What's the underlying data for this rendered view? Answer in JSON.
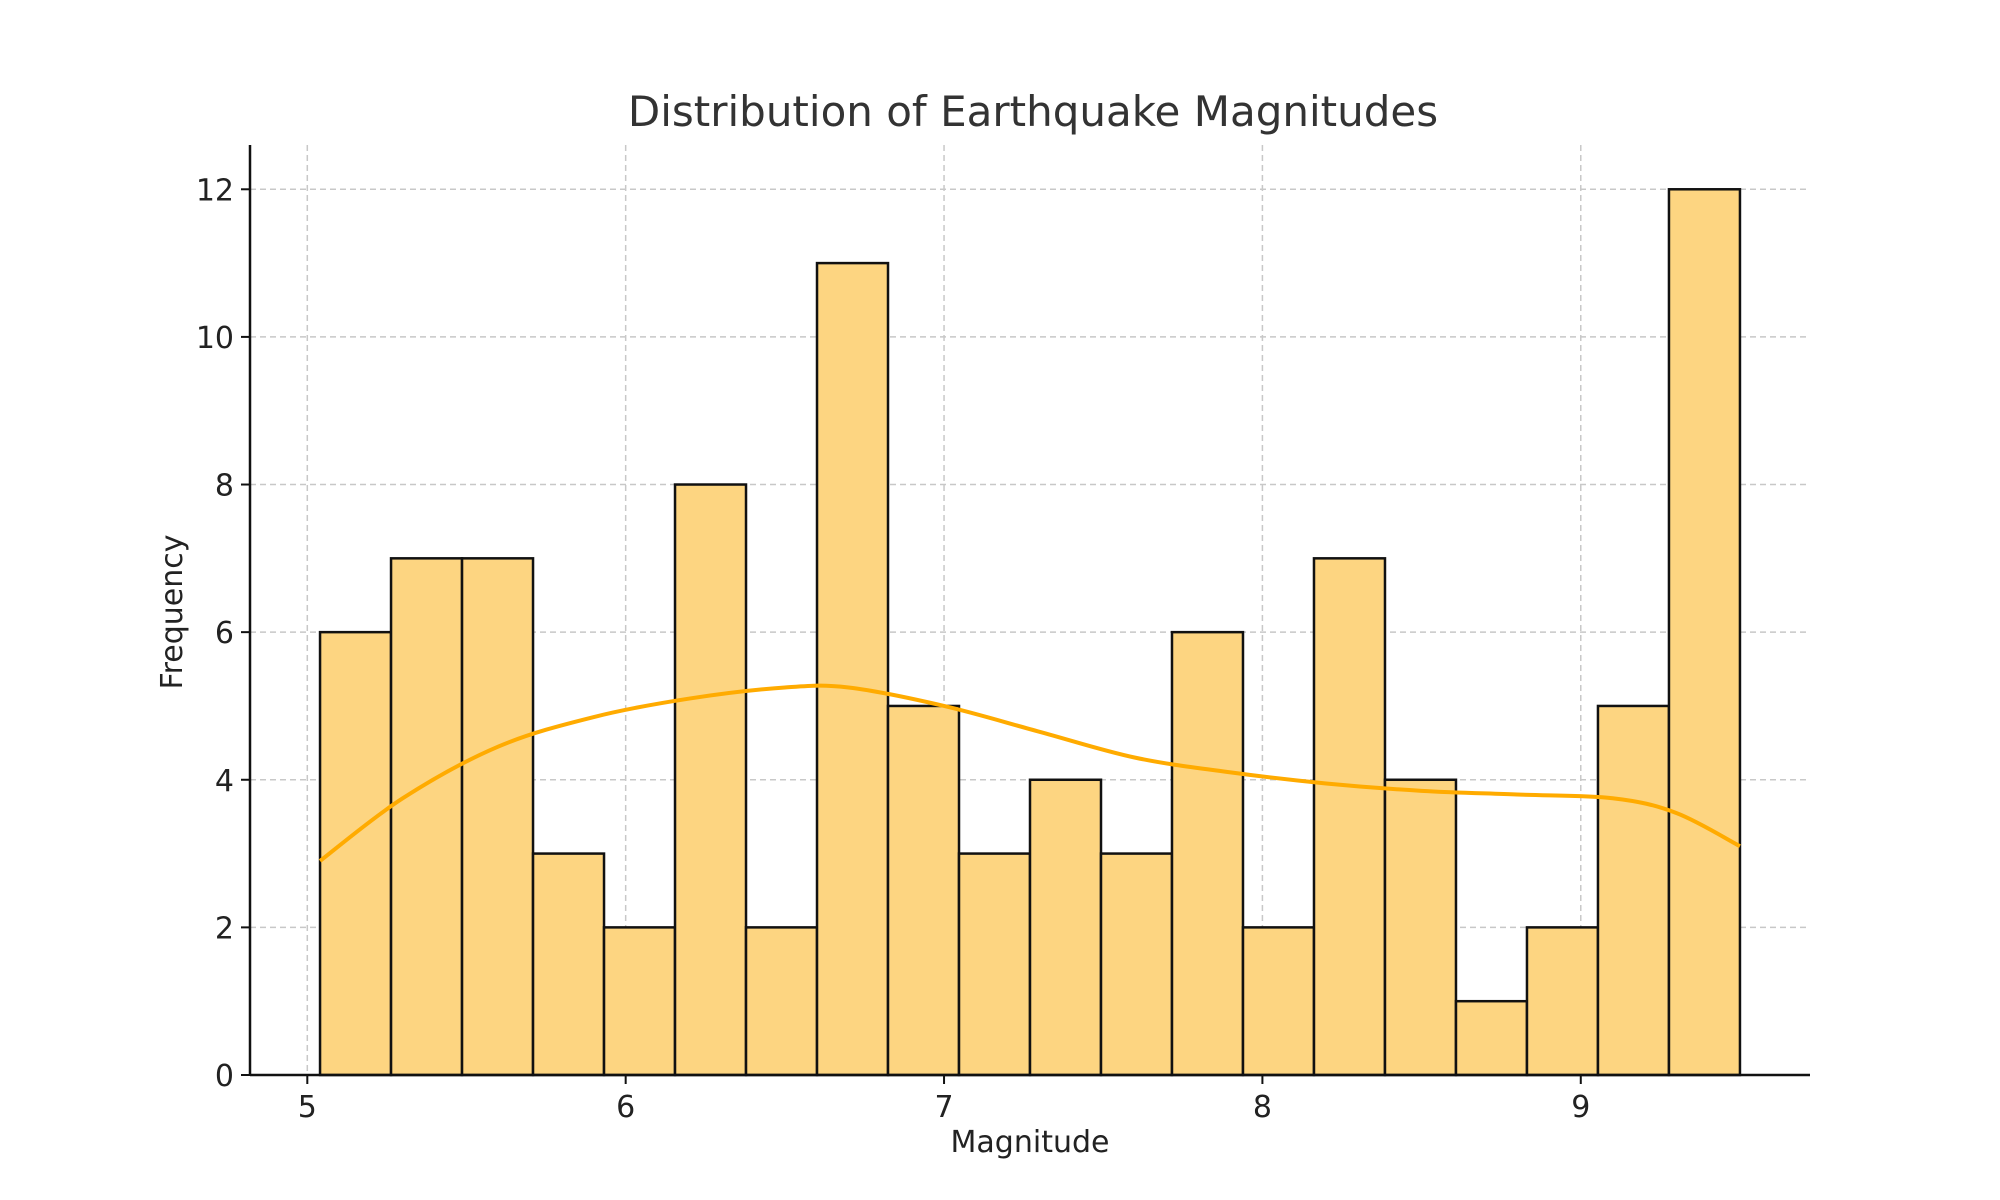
{
  "chart_data": {
    "type": "bar",
    "title": "Distribution of Earthquake Magnitudes",
    "xlabel": "Magnitude",
    "ylabel": "Frequency",
    "xlim": [
      4.82,
      9.72
    ],
    "ylim": [
      0,
      12.6
    ],
    "xticks": [
      5,
      6,
      7,
      8,
      9
    ],
    "yticks": [
      0,
      2,
      4,
      6,
      8,
      10,
      12
    ],
    "grid": true,
    "bins": {
      "edges": [
        5.04,
        5.263,
        5.486,
        5.709,
        5.932,
        6.155,
        6.378,
        6.601,
        6.824,
        7.047,
        7.27,
        7.493,
        7.716,
        7.939,
        8.162,
        8.385,
        8.608,
        8.831,
        9.054,
        9.277,
        9.5
      ],
      "values": [
        6,
        7,
        7,
        3,
        2,
        8,
        2,
        11,
        5,
        3,
        4,
        3,
        6,
        2,
        7,
        4,
        1,
        2,
        5,
        12
      ]
    },
    "series": [
      {
        "type": "line",
        "x": [
          5.04,
          5.3,
          5.6,
          5.9,
          6.2,
          6.5,
          6.7,
          7.0,
          7.3,
          7.6,
          7.9,
          8.2,
          8.5,
          8.8,
          9.1,
          9.3,
          9.5
        ],
        "values": [
          2.9,
          3.75,
          4.45,
          4.85,
          5.1,
          5.25,
          5.25,
          5.0,
          4.65,
          4.3,
          4.1,
          3.95,
          3.85,
          3.8,
          3.75,
          3.55,
          3.1
        ]
      }
    ],
    "colors": {
      "bar_fill": "#fdd581",
      "bar_edge": "#111111",
      "kde_line": "#ffab00",
      "grid": "#c8c8c8"
    }
  }
}
